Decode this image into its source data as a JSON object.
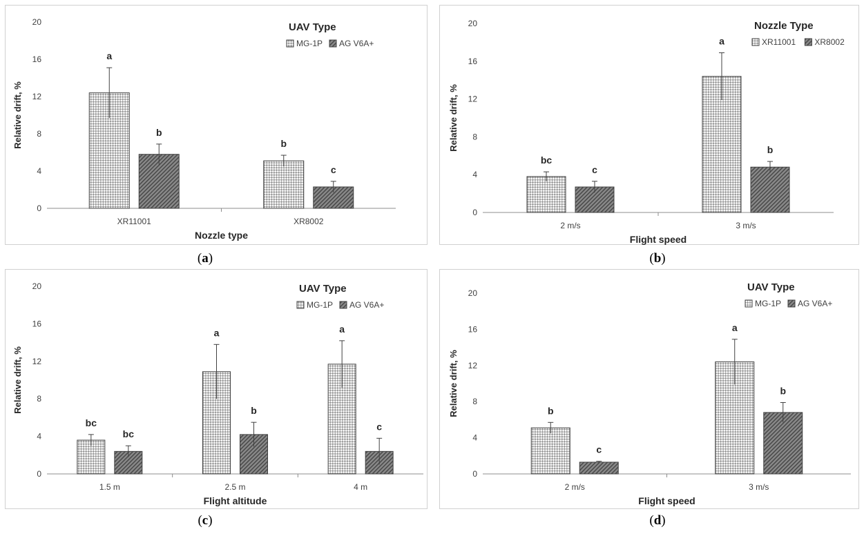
{
  "colors": {
    "series1": "#ffffff",
    "series2": "#7a7a7a",
    "axis": "#7f7f7f",
    "text": "#404040"
  },
  "chart_data": [
    {
      "id": "a",
      "caption": "a",
      "type": "bar",
      "ylabel": "Relative drift, %",
      "xlabel": "Nozzle type",
      "ylim": [
        0,
        20
      ],
      "yticks": [
        0,
        4,
        8,
        12,
        16,
        20
      ],
      "legend_title": "UAV Type",
      "legend_position": "top-right",
      "categories": [
        "XR11001",
        "XR8002"
      ],
      "series": [
        {
          "name": "MG-1P",
          "values": [
            12.4,
            5.1
          ],
          "errors": [
            2.7,
            0.6
          ],
          "letters": [
            "a",
            "b"
          ]
        },
        {
          "name": "AG V6A+",
          "values": [
            5.8,
            2.3
          ],
          "errors": [
            1.1,
            0.6
          ],
          "letters": [
            "b",
            "c"
          ]
        }
      ]
    },
    {
      "id": "b",
      "caption": "b",
      "type": "bar",
      "ylabel": "Relative drift, %",
      "xlabel": "Flight speed",
      "ylim": [
        0,
        20
      ],
      "yticks": [
        0,
        4,
        8,
        12,
        16,
        20
      ],
      "legend_title": "Nozzle Type",
      "legend_position": "top-right",
      "categories": [
        "2 m/s",
        "3 m/s"
      ],
      "series": [
        {
          "name": "XR11001",
          "values": [
            3.8,
            14.4
          ],
          "errors": [
            0.5,
            2.5
          ],
          "letters": [
            "bc",
            "a"
          ]
        },
        {
          "name": "XR8002",
          "values": [
            2.7,
            4.8
          ],
          "errors": [
            0.6,
            0.6
          ],
          "letters": [
            "c",
            "b"
          ]
        }
      ]
    },
    {
      "id": "c",
      "caption": "c",
      "type": "bar",
      "ylabel": "Relative drift, %",
      "xlabel": "Flight altitude",
      "ylim": [
        0,
        20
      ],
      "yticks": [
        0,
        4,
        8,
        12,
        16,
        20
      ],
      "legend_title": "UAV Type",
      "legend_position": "top-right",
      "categories": [
        "1.5 m",
        "2.5 m",
        "4 m"
      ],
      "series": [
        {
          "name": "MG-1P",
          "values": [
            3.6,
            10.9,
            11.7
          ],
          "errors": [
            0.6,
            2.9,
            2.5
          ],
          "letters": [
            "bc",
            "a",
            "a"
          ]
        },
        {
          "name": "AG V6A+",
          "values": [
            2.4,
            4.2,
            2.4
          ],
          "errors": [
            0.6,
            1.3,
            1.4
          ],
          "letters": [
            "bc",
            "b",
            "c"
          ]
        }
      ]
    },
    {
      "id": "d",
      "caption": "d",
      "type": "bar",
      "ylabel": "Relative drift, %",
      "xlabel": "Flight speed",
      "ylim": [
        0,
        20
      ],
      "yticks": [
        0,
        4,
        8,
        12,
        16,
        20
      ],
      "legend_title": "UAV Type",
      "legend_position": "top-right",
      "categories": [
        "2 m/s",
        "3 m/s"
      ],
      "series": [
        {
          "name": "MG-1P",
          "values": [
            5.1,
            12.4
          ],
          "errors": [
            0.6,
            2.5
          ],
          "letters": [
            "b",
            "a"
          ]
        },
        {
          "name": "AG V6A+",
          "values": [
            1.3,
            6.8
          ],
          "errors": [
            0.1,
            1.1
          ],
          "letters": [
            "c",
            "b"
          ]
        }
      ]
    }
  ]
}
